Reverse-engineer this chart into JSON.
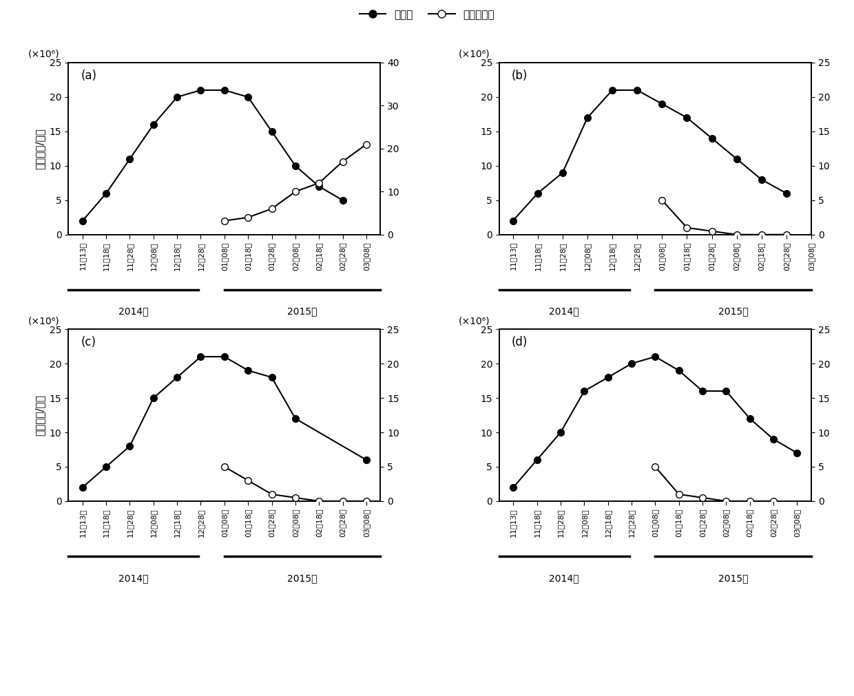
{
  "x_labels": [
    "11月13日",
    "11月18日",
    "11月28日",
    "12月08日",
    "12月18日",
    "12月28日",
    "01月08日",
    "01月18日",
    "01月28日",
    "02月08日",
    "02月18日",
    "02月28日",
    "03月08日"
  ],
  "year_groups": [
    {
      "label": "2014年",
      "start": 0,
      "end": 5
    },
    {
      "label": "2015年",
      "start": 6,
      "end": 12
    }
  ],
  "panel_a": {
    "label": "(a)",
    "chlorella": [
      2,
      6,
      11,
      16,
      20,
      21,
      21,
      20,
      15,
      10,
      7,
      5,
      null
    ],
    "copepod": [
      null,
      null,
      null,
      null,
      null,
      null,
      3.2,
      4,
      6,
      10,
      12,
      17,
      21
    ],
    "ylim_left": [
      0,
      25
    ],
    "ylim_right": [
      0,
      40
    ],
    "yticks_left": [
      0,
      5,
      10,
      15,
      20,
      25
    ],
    "yticks_right": [
      0,
      10,
      20,
      30,
      40
    ]
  },
  "panel_b": {
    "label": "(b)",
    "chlorella": [
      2,
      6,
      9,
      17,
      21,
      21,
      19,
      17,
      14,
      11,
      8,
      6,
      null
    ],
    "copepod": [
      null,
      null,
      null,
      null,
      null,
      null,
      5,
      1,
      0.5,
      0,
      0,
      0,
      null
    ],
    "ylim_left": [
      0,
      25
    ],
    "ylim_right": [
      0,
      25
    ],
    "yticks_left": [
      0,
      5,
      10,
      15,
      20,
      25
    ],
    "yticks_right": [
      0,
      5,
      10,
      15,
      20,
      25
    ]
  },
  "panel_c": {
    "label": "(c)",
    "chlorella": [
      2,
      5,
      8,
      15,
      18,
      21,
      21,
      19,
      18,
      12,
      null,
      null,
      6
    ],
    "copepod": [
      null,
      null,
      null,
      null,
      null,
      null,
      5,
      3,
      1,
      0.5,
      0,
      0,
      0
    ],
    "ylim_left": [
      0,
      25
    ],
    "ylim_right": [
      0,
      25
    ],
    "yticks_left": [
      0,
      5,
      10,
      15,
      20,
      25
    ],
    "yticks_right": [
      0,
      5,
      10,
      15,
      20,
      25
    ]
  },
  "panel_d": {
    "label": "(d)",
    "chlorella": [
      2,
      6,
      10,
      16,
      18,
      20,
      21,
      19,
      16,
      16,
      12,
      9,
      7
    ],
    "copepod": [
      null,
      null,
      null,
      null,
      null,
      null,
      5,
      1,
      0.5,
      0,
      0,
      0,
      null
    ],
    "ylim_left": [
      0,
      25
    ],
    "ylim_right": [
      0,
      25
    ],
    "yticks_left": [
      0,
      5,
      10,
      15,
      20,
      25
    ],
    "yticks_right": [
      0,
      5,
      10,
      15,
      20,
      25
    ]
  },
  "legend_label_solid": "小球藻",
  "legend_label_open": "钩足平直溞",
  "ylabel": "密度（个/升）",
  "unit_label": "(×10⁶)"
}
